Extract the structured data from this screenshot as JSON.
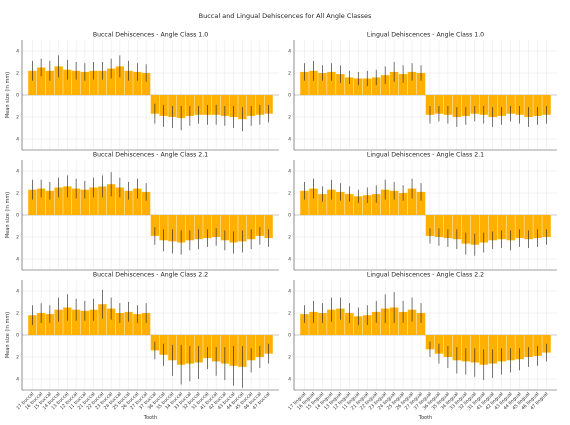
{
  "figure": {
    "suptitle": "Buccal and Lingual Dehiscences for All Angle Classes",
    "bar_color": "#ffb000",
    "error_color": "#1a1a1a"
  },
  "chart_data": [
    {
      "type": "bar",
      "title": "Buccal Dehiscences - Angle Class 1.0",
      "xlabel": "",
      "ylabel": "Mean size (in mm)",
      "ylim": [
        -5,
        5
      ],
      "yticks": [
        4,
        2,
        0,
        2,
        4
      ],
      "categories": [
        "17 buccal",
        "16 buccal",
        "15 buccal",
        "14 buccal",
        "13 buccal",
        "12 buccal",
        "11 buccal",
        "21 buccal",
        "22 buccal",
        "23 buccal",
        "24 buccal",
        "25 buccal",
        "26 buccal",
        "27 buccal",
        "37 buccal",
        "36 buccal",
        "35 buccal",
        "34 buccal",
        "33 buccal",
        "32 buccal",
        "31 buccal",
        "41 buccal",
        "42 buccal",
        "43 buccal",
        "44 buccal",
        "45 buccal",
        "46 buccal",
        "47 buccal"
      ],
      "values": [
        2.2,
        2.5,
        2.2,
        2.6,
        2.3,
        2.2,
        2.1,
        2.2,
        2.2,
        2.4,
        2.6,
        2.2,
        2.1,
        2.0,
        -1.7,
        -1.9,
        -2.0,
        -2.1,
        -1.9,
        -1.8,
        -1.8,
        -1.8,
        -1.9,
        -2.0,
        -2.2,
        -1.9,
        -1.8,
        -1.7
      ],
      "errors": [
        0.9,
        0.8,
        0.9,
        1.0,
        0.9,
        0.8,
        0.8,
        0.8,
        0.8,
        0.9,
        1.0,
        0.9,
        0.8,
        0.8,
        0.9,
        1.0,
        1.0,
        1.1,
        0.9,
        0.8,
        0.9,
        0.9,
        0.9,
        1.0,
        1.1,
        0.9,
        0.9,
        0.8
      ]
    },
    {
      "type": "bar",
      "title": "Lingual Dehiscences - Angle Class 1.0",
      "xlabel": "",
      "ylabel": "",
      "ylim": [
        -5,
        5
      ],
      "yticks": [
        4,
        2,
        0,
        2,
        4
      ],
      "categories": [
        "17 lingual",
        "16 lingual",
        "15 lingual",
        "14 lingual",
        "13 lingual",
        "12 lingual",
        "11 lingual",
        "21 lingual",
        "22 lingual",
        "23 lingual",
        "24 lingual",
        "25 lingual",
        "26 lingual",
        "27 lingual",
        "37 lingual",
        "36 lingual",
        "35 lingual",
        "34 lingual",
        "33 lingual",
        "32 lingual",
        "31 lingual",
        "41 lingual",
        "42 lingual",
        "43 lingual",
        "44 lingual",
        "45 lingual",
        "46 lingual",
        "47 lingual"
      ],
      "values": [
        2.1,
        2.2,
        2.0,
        2.1,
        1.9,
        1.6,
        1.5,
        1.5,
        1.6,
        1.8,
        2.1,
        1.9,
        2.1,
        2.0,
        -1.8,
        -1.7,
        -1.8,
        -2.0,
        -1.9,
        -1.7,
        -1.8,
        -2.0,
        -1.9,
        -1.7,
        -1.8,
        -2.0,
        -1.9,
        -1.8
      ],
      "errors": [
        0.8,
        0.9,
        0.7,
        0.8,
        0.8,
        0.6,
        0.6,
        0.7,
        0.7,
        0.8,
        0.9,
        0.8,
        0.8,
        0.7,
        0.8,
        0.7,
        0.8,
        0.9,
        0.8,
        0.7,
        0.8,
        0.9,
        0.8,
        0.7,
        0.8,
        0.9,
        0.8,
        0.8
      ]
    },
    {
      "type": "bar",
      "title": "Buccal Dehiscences - Angle Class 2.1",
      "xlabel": "",
      "ylabel": "Mean size (in mm)",
      "ylim": [
        -5,
        5
      ],
      "yticks": [
        4,
        2,
        0,
        2,
        4
      ],
      "categories": [
        "17 buccal",
        "16 buccal",
        "15 buccal",
        "14 buccal",
        "13 buccal",
        "12 buccal",
        "11 buccal",
        "21 buccal",
        "22 buccal",
        "23 buccal",
        "24 buccal",
        "25 buccal",
        "26 buccal",
        "27 buccal",
        "37 buccal",
        "36 buccal",
        "35 buccal",
        "34 buccal",
        "33 buccal",
        "32 buccal",
        "31 buccal",
        "41 buccal",
        "42 buccal",
        "43 buccal",
        "44 buccal",
        "45 buccal",
        "46 buccal",
        "47 buccal"
      ],
      "values": [
        2.3,
        2.4,
        2.2,
        2.5,
        2.6,
        2.4,
        2.3,
        2.5,
        2.6,
        2.8,
        2.5,
        2.2,
        2.4,
        2.1,
        -1.9,
        -2.3,
        -2.4,
        -2.5,
        -2.3,
        -2.2,
        -2.1,
        -2.0,
        -2.3,
        -2.5,
        -2.4,
        -2.2,
        -1.9,
        -2.1
      ],
      "errors": [
        0.9,
        0.8,
        0.8,
        0.9,
        1.0,
        0.9,
        0.8,
        0.9,
        1.0,
        1.1,
        0.9,
        0.8,
        0.9,
        0.8,
        0.8,
        1.0,
        1.1,
        1.1,
        0.9,
        0.9,
        0.8,
        0.8,
        0.9,
        1.0,
        1.0,
        0.9,
        0.8,
        0.8
      ]
    },
    {
      "type": "bar",
      "title": "Lingual Dehiscences - Angle Class 2.1",
      "xlabel": "",
      "ylabel": "",
      "ylim": [
        -5,
        5
      ],
      "yticks": [
        4,
        2,
        0,
        2,
        4
      ],
      "categories": [
        "17 lingual",
        "16 lingual",
        "15 lingual",
        "14 lingual",
        "13 lingual",
        "12 lingual",
        "11 lingual",
        "21 lingual",
        "22 lingual",
        "23 lingual",
        "24 lingual",
        "25 lingual",
        "26 lingual",
        "27 lingual",
        "37 lingual",
        "36 lingual",
        "35 lingual",
        "34 lingual",
        "33 lingual",
        "32 lingual",
        "31 lingual",
        "41 lingual",
        "42 lingual",
        "43 lingual",
        "44 lingual",
        "45 lingual",
        "46 lingual",
        "47 lingual"
      ],
      "values": [
        2.2,
        2.4,
        1.9,
        2.3,
        2.1,
        1.9,
        1.7,
        1.8,
        1.9,
        2.3,
        2.2,
        2.0,
        2.4,
        2.1,
        -1.9,
        -2.0,
        -2.1,
        -2.2,
        -2.6,
        -2.7,
        -2.5,
        -2.3,
        -2.2,
        -2.3,
        -2.1,
        -2.2,
        -2.1,
        -2.0
      ],
      "errors": [
        0.8,
        0.9,
        0.7,
        0.9,
        0.8,
        0.7,
        0.6,
        0.7,
        0.8,
        0.9,
        0.8,
        0.7,
        0.9,
        0.8,
        0.7,
        0.8,
        0.8,
        0.9,
        1.0,
        1.0,
        0.9,
        0.8,
        0.8,
        0.9,
        0.8,
        0.8,
        0.8,
        0.7
      ]
    },
    {
      "type": "bar",
      "title": "Buccal Dehiscences - Angle Class 2.2",
      "xlabel": "Tooth",
      "ylabel": "Mean size (in mm)",
      "ylim": [
        -5,
        5
      ],
      "yticks": [
        4,
        2,
        0,
        2,
        4
      ],
      "categories": [
        "17 buccal",
        "16 buccal",
        "15 buccal",
        "14 buccal",
        "13 buccal",
        "12 buccal",
        "11 buccal",
        "21 buccal",
        "22 buccal",
        "23 buccal",
        "24 buccal",
        "25 buccal",
        "26 buccal",
        "27 buccal",
        "37 buccal",
        "36 buccal",
        "35 buccal",
        "34 buccal",
        "33 buccal",
        "32 buccal",
        "31 buccal",
        "41 buccal",
        "42 buccal",
        "43 buccal",
        "44 buccal",
        "45 buccal",
        "46 buccal",
        "47 buccal"
      ],
      "values": [
        1.8,
        2.0,
        1.9,
        2.3,
        2.5,
        2.3,
        2.2,
        2.3,
        2.8,
        2.4,
        2.0,
        2.1,
        1.9,
        2.0,
        -1.4,
        -1.8,
        -2.3,
        -2.7,
        -2.6,
        -2.5,
        -2.1,
        -2.4,
        -2.6,
        -2.8,
        -2.9,
        -2.3,
        -2.0,
        -1.7
      ],
      "errors": [
        0.9,
        0.9,
        0.8,
        1.1,
        1.2,
        1.0,
        0.9,
        1.0,
        1.3,
        1.0,
        0.9,
        0.9,
        0.8,
        0.9,
        0.8,
        1.0,
        1.4,
        1.8,
        1.6,
        1.5,
        1.0,
        1.3,
        1.5,
        1.8,
        1.9,
        1.1,
        1.0,
        0.9
      ]
    },
    {
      "type": "bar",
      "title": "Lingual Dehiscences - Angle Class 2.2",
      "xlabel": "Tooth",
      "ylabel": "",
      "ylim": [
        -5,
        5
      ],
      "yticks": [
        4,
        2,
        0,
        2,
        4
      ],
      "categories": [
        "17 lingual",
        "16 lingual",
        "15 lingual",
        "14 lingual",
        "13 lingual",
        "12 lingual",
        "11 lingual",
        "21 lingual",
        "22 lingual",
        "23 lingual",
        "24 lingual",
        "25 lingual",
        "26 lingual",
        "27 lingual",
        "37 lingual",
        "36 lingual",
        "35 lingual",
        "34 lingual",
        "33 lingual",
        "32 lingual",
        "31 lingual",
        "41 lingual",
        "42 lingual",
        "43 lingual",
        "44 lingual",
        "45 lingual",
        "46 lingual",
        "47 lingual"
      ],
      "values": [
        1.9,
        2.1,
        2.0,
        2.3,
        2.4,
        2.0,
        1.7,
        1.8,
        2.1,
        2.4,
        2.5,
        2.1,
        2.3,
        2.0,
        -1.3,
        -1.7,
        -2.0,
        -2.3,
        -2.4,
        -2.5,
        -2.7,
        -2.6,
        -2.4,
        -2.3,
        -2.2,
        -2.0,
        -1.9,
        -1.6
      ],
      "errors": [
        0.8,
        1.0,
        0.9,
        1.1,
        1.0,
        0.9,
        0.8,
        0.9,
        1.0,
        1.3,
        1.4,
        1.0,
        1.1,
        0.9,
        0.7,
        0.9,
        1.0,
        1.2,
        1.2,
        1.3,
        1.4,
        1.3,
        1.2,
        1.1,
        1.0,
        0.9,
        0.9,
        0.8
      ]
    }
  ]
}
